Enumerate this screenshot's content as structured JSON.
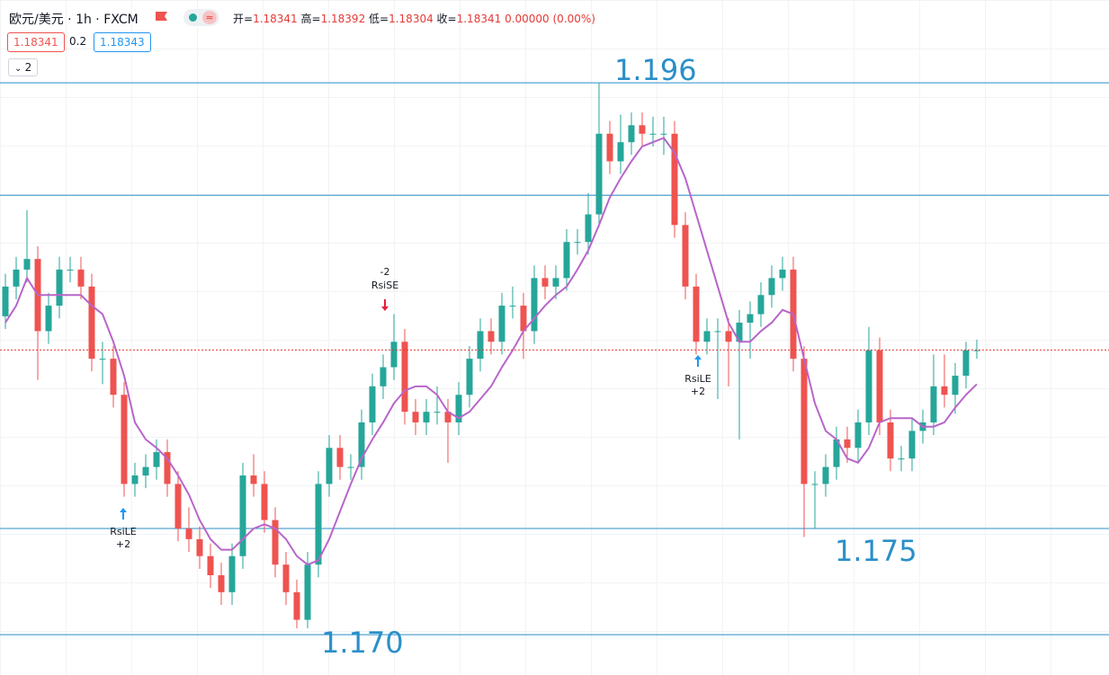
{
  "header": {
    "symbol": "欧元/美元 · 1h · FXCM",
    "ohlc": [
      {
        "label": "开=",
        "value": 1.18341
      },
      {
        "label": "高=",
        "value": 1.18392
      },
      {
        "label": "低=",
        "value": 1.18304
      },
      {
        "label": "收=",
        "value": 1.18341
      }
    ],
    "change": "0.00000 (0.00%)",
    "sell": 1.18341,
    "spread": 0.2,
    "buy": 1.18343,
    "indicator_count": 2
  },
  "chart_data": {
    "type": "candlestick",
    "open": [
      1.185,
      1.1864,
      1.1872,
      1.1877,
      1.1843,
      1.1855,
      1.1872,
      1.1872,
      1.1864,
      1.183,
      1.183,
      1.1813,
      1.1771,
      1.1775,
      1.1779,
      1.1786,
      1.1771,
      1.175,
      1.1745,
      1.1737,
      1.1728,
      1.172,
      1.1737,
      1.1775,
      1.1771,
      1.1754,
      1.1733,
      1.172,
      1.1707,
      1.1733,
      1.1771,
      1.1788,
      1.1779,
      1.1779,
      1.18,
      1.1817,
      1.1826,
      1.1838,
      1.1805,
      1.18,
      1.1805,
      1.1805,
      1.18,
      1.1813,
      1.183,
      1.1843,
      1.1838,
      1.1855,
      1.1855,
      1.1843,
      1.1868,
      1.1864,
      1.1868,
      1.1885,
      1.1885,
      1.1898,
      1.1936,
      1.1923,
      1.1932,
      1.194,
      1.1936,
      1.1936,
      1.1936,
      1.1893,
      1.1864,
      1.1838,
      1.1843,
      1.1843,
      1.1838,
      1.1847,
      1.1851,
      1.186,
      1.1868,
      1.1872,
      1.183,
      1.1771,
      1.1771,
      1.1779,
      1.1792,
      1.1788,
      1.18,
      1.1834,
      1.18,
      1.1783,
      1.1783,
      1.1796,
      1.18,
      1.1817,
      1.1813,
      1.1822,
      1.1834
    ],
    "high": [
      1.187,
      1.1878,
      1.19,
      1.1883,
      1.1861,
      1.1878,
      1.1878,
      1.1878,
      1.187,
      1.1838,
      1.1836,
      1.1819,
      1.1781,
      1.1785,
      1.1792,
      1.1792,
      1.1777,
      1.176,
      1.1751,
      1.1743,
      1.1734,
      1.1743,
      1.1781,
      1.1785,
      1.1777,
      1.176,
      1.1739,
      1.1726,
      1.1739,
      1.1777,
      1.1794,
      1.1794,
      1.1785,
      1.1806,
      1.1823,
      1.1832,
      1.1851,
      1.1844,
      1.1811,
      1.1811,
      1.1817,
      1.1811,
      1.1819,
      1.1836,
      1.1849,
      1.1849,
      1.1861,
      1.1864,
      1.1861,
      1.1874,
      1.1874,
      1.1874,
      1.1891,
      1.1891,
      1.1908,
      1.196,
      1.1942,
      1.1945,
      1.1946,
      1.1946,
      1.1944,
      1.1944,
      1.1942,
      1.1899,
      1.187,
      1.1849,
      1.1849,
      1.1849,
      1.1853,
      1.1857,
      1.1866,
      1.1874,
      1.1878,
      1.1878,
      1.1836,
      1.1777,
      1.1785,
      1.1798,
      1.1798,
      1.1806,
      1.1845,
      1.184,
      1.1806,
      1.1789,
      1.1802,
      1.1806,
      1.1832,
      1.1832,
      1.1828,
      1.1838,
      1.1839
    ],
    "low": [
      1.1844,
      1.1858,
      1.1866,
      1.182,
      1.1837,
      1.1849,
      1.1866,
      1.1858,
      1.1824,
      1.1818,
      1.1807,
      1.1765,
      1.1765,
      1.1769,
      1.1773,
      1.1765,
      1.1744,
      1.1739,
      1.1731,
      1.1722,
      1.1714,
      1.1714,
      1.1731,
      1.1765,
      1.1748,
      1.1727,
      1.1714,
      1.1703,
      1.1703,
      1.1727,
      1.1765,
      1.1773,
      1.1773,
      1.1773,
      1.1794,
      1.1811,
      1.182,
      1.1799,
      1.1794,
      1.1794,
      1.1799,
      1.1781,
      1.1794,
      1.1807,
      1.1824,
      1.1832,
      1.1832,
      1.1849,
      1.183,
      1.1837,
      1.1858,
      1.1858,
      1.1862,
      1.1879,
      1.1879,
      1.1892,
      1.1917,
      1.1917,
      1.1926,
      1.193,
      1.193,
      1.1926,
      1.1887,
      1.1858,
      1.1832,
      1.1832,
      1.1811,
      1.1817,
      1.1792,
      1.183,
      1.1845,
      1.1854,
      1.1862,
      1.1824,
      1.1746,
      1.175,
      1.1765,
      1.1773,
      1.1781,
      1.1781,
      1.1794,
      1.1794,
      1.1777,
      1.1777,
      1.1777,
      1.179,
      1.1794,
      1.1807,
      1.1804,
      1.1816,
      1.183
    ],
    "close": [
      1.1864,
      1.1872,
      1.1877,
      1.1843,
      1.1855,
      1.1872,
      1.1872,
      1.1864,
      1.183,
      1.183,
      1.1813,
      1.1771,
      1.1775,
      1.1779,
      1.1786,
      1.1771,
      1.175,
      1.1745,
      1.1737,
      1.1728,
      1.172,
      1.1737,
      1.1775,
      1.1771,
      1.1754,
      1.1733,
      1.172,
      1.1707,
      1.1733,
      1.1771,
      1.1788,
      1.1779,
      1.1779,
      1.18,
      1.1817,
      1.1826,
      1.1838,
      1.1805,
      1.18,
      1.1805,
      1.1805,
      1.18,
      1.1813,
      1.183,
      1.1843,
      1.1838,
      1.1855,
      1.1855,
      1.1843,
      1.1868,
      1.1864,
      1.1868,
      1.1885,
      1.1885,
      1.1898,
      1.1936,
      1.1923,
      1.1932,
      1.194,
      1.1936,
      1.1936,
      1.1936,
      1.1893,
      1.1864,
      1.1838,
      1.1843,
      1.1843,
      1.1838,
      1.1847,
      1.1851,
      1.186,
      1.1868,
      1.1872,
      1.183,
      1.1771,
      1.1771,
      1.1779,
      1.1792,
      1.1788,
      1.18,
      1.1834,
      1.18,
      1.1783,
      1.1783,
      1.1796,
      1.18,
      1.1817,
      1.1813,
      1.1822,
      1.1834,
      1.1834
    ],
    "up_color": "#26a69a",
    "down_color": "#ef5350",
    "ylim": [
      1.1681,
      1.1999
    ],
    "ma": {
      "color": "#b865c9",
      "values": [
        1.1847,
        1.1855,
        1.1868,
        1.186,
        1.186,
        1.186,
        1.186,
        1.186,
        1.1855,
        1.1851,
        1.1838,
        1.1822,
        1.18,
        1.1792,
        1.1788,
        1.1783,
        1.1775,
        1.1766,
        1.1754,
        1.1745,
        1.174,
        1.174,
        1.1745,
        1.175,
        1.1752,
        1.175,
        1.1745,
        1.1737,
        1.1733,
        1.1735,
        1.1745,
        1.1758,
        1.1771,
        1.1783,
        1.1792,
        1.18,
        1.1809,
        1.1815,
        1.1817,
        1.1817,
        1.1813,
        1.1805,
        1.1802,
        1.1805,
        1.1811,
        1.1817,
        1.1826,
        1.1834,
        1.1843,
        1.1849,
        1.1855,
        1.186,
        1.1864,
        1.1872,
        1.1881,
        1.1893,
        1.1906,
        1.1915,
        1.1923,
        1.193,
        1.1932,
        1.1934,
        1.1927,
        1.1915,
        1.1898,
        1.1881,
        1.1864,
        1.1847,
        1.1838,
        1.1838,
        1.1843,
        1.1847,
        1.1853,
        1.1851,
        1.183,
        1.1809,
        1.1796,
        1.1792,
        1.1783,
        1.1781,
        1.1788,
        1.18,
        1.1802,
        1.1802,
        1.1802,
        1.1798,
        1.1798,
        1.18,
        1.1807,
        1.1813,
        1.1818
      ]
    },
    "levels": [
      {
        "value": 1.196,
        "label": "1.196"
      },
      {
        "value": 1.1907
      },
      {
        "value": 1.175,
        "label": "1.175"
      },
      {
        "value": 1.17,
        "label": "1.170"
      }
    ],
    "level_color": "#2a8fc9",
    "last_price": 1.18341,
    "last_price_color": "#e53935",
    "signals": [
      {
        "label": "RsiLE",
        "qty": "+2"
      },
      {
        "label": "RsiSE",
        "qty": "-2"
      },
      {
        "label": "RsiLE",
        "qty": "+2"
      }
    ]
  }
}
